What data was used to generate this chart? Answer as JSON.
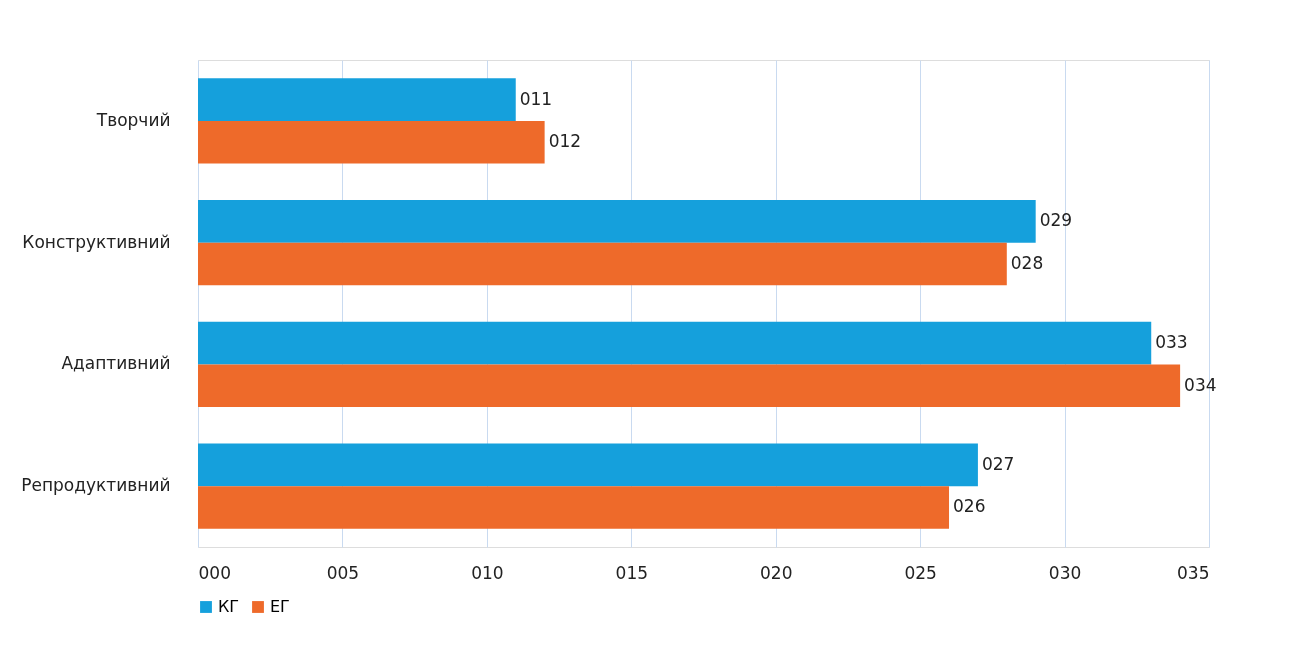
{
  "chart_data": {
    "type": "bar",
    "orientation": "horizontal",
    "categories": [
      "Творчий",
      "Конструктивний",
      "Адаптивний",
      "Репродуктивний"
    ],
    "series": [
      {
        "name": "КГ",
        "color": "#15a0dc",
        "values": [
          11,
          29,
          33,
          27
        ],
        "value_labels": [
          "011",
          "029",
          "033",
          "027"
        ]
      },
      {
        "name": "ЕГ",
        "color": "#ee6a2a",
        "values": [
          12,
          28,
          34,
          26
        ],
        "value_labels": [
          "012",
          "028",
          "034",
          "026"
        ]
      }
    ],
    "xlim": [
      0,
      35
    ],
    "xticks": [
      {
        "value": 0,
        "label": "000"
      },
      {
        "value": 5,
        "label": "005"
      },
      {
        "value": 10,
        "label": "010"
      },
      {
        "value": 15,
        "label": "015"
      },
      {
        "value": 20,
        "label": "020"
      },
      {
        "value": 25,
        "label": "025"
      },
      {
        "value": 30,
        "label": "030"
      },
      {
        "value": 35,
        "label": "035"
      }
    ],
    "grid": "x",
    "legend": "bottom"
  }
}
